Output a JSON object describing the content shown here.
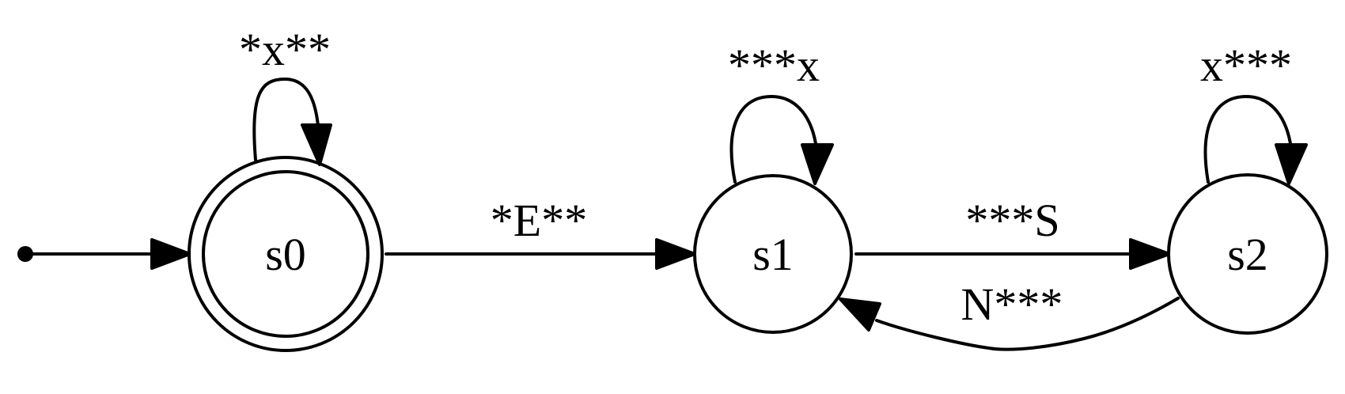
{
  "states": [
    {
      "id": "s0",
      "label": "s0",
      "accepting": true,
      "initial": true
    },
    {
      "id": "s1",
      "label": "s1",
      "accepting": false,
      "initial": false
    },
    {
      "id": "s2",
      "label": "s2",
      "accepting": false,
      "initial": false
    }
  ],
  "transitions": [
    {
      "from": "s0",
      "to": "s0",
      "label": "*x**"
    },
    {
      "from": "s0",
      "to": "s1",
      "label": "*E**"
    },
    {
      "from": "s1",
      "to": "s1",
      "label": "***x"
    },
    {
      "from": "s1",
      "to": "s2",
      "label": "***S"
    },
    {
      "from": "s2",
      "to": "s2",
      "label": "x***"
    },
    {
      "from": "s2",
      "to": "s1",
      "label": "N***"
    }
  ],
  "colors": {
    "stroke": "#000000",
    "background": "#ffffff"
  }
}
